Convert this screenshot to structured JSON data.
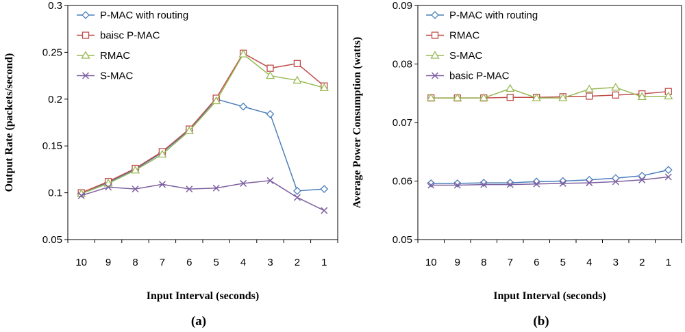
{
  "chart_data": [
    {
      "type": "line",
      "panel_label": "(a)",
      "xlabel": "Input Interval (seconds)",
      "ylabel": "Output Rate (packets/second)",
      "categories": [
        "10",
        "9",
        "8",
        "7",
        "6",
        "5",
        "4",
        "3",
        "2",
        "1"
      ],
      "ylim": [
        0.05,
        0.3
      ],
      "yticks": [
        "0.05",
        "0.1",
        "0.15",
        "0.2",
        "0.25",
        "0.3"
      ],
      "ytick_values": [
        0.05,
        0.1,
        0.15,
        0.2,
        0.25,
        0.3
      ],
      "legend_position": "top-left",
      "grid": false,
      "series": [
        {
          "name": "P-MAC with routing",
          "marker": "diamond",
          "color": "#4a7ebb",
          "values": [
            0.099,
            0.111,
            0.125,
            0.143,
            0.167,
            0.2,
            0.192,
            0.184,
            0.102,
            0.104
          ]
        },
        {
          "name": "baisc P-MAC",
          "marker": "square",
          "color": "#be4b48",
          "values": [
            0.1,
            0.112,
            0.126,
            0.144,
            0.168,
            0.201,
            0.249,
            0.233,
            0.238,
            0.214
          ]
        },
        {
          "name": "RMAC",
          "marker": "triangle",
          "color": "#98b954",
          "values": [
            0.099,
            0.11,
            0.124,
            0.141,
            0.166,
            0.198,
            0.248,
            0.225,
            0.22,
            0.212
          ]
        },
        {
          "name": "S-MAC",
          "marker": "x",
          "color": "#7d60a0",
          "values": [
            0.097,
            0.106,
            0.104,
            0.109,
            0.104,
            0.105,
            0.11,
            0.113,
            0.095,
            0.081
          ]
        }
      ]
    },
    {
      "type": "line",
      "panel_label": "(b)",
      "xlabel": "Input Interval (seconds)",
      "ylabel": "Average Power Consumption (watts)",
      "categories": [
        "10",
        "9",
        "8",
        "7",
        "6",
        "5",
        "4",
        "3",
        "2",
        "1"
      ],
      "ylim": [
        0.05,
        0.09
      ],
      "yticks": [
        "0.05",
        "0.06",
        "0.07",
        "0.08",
        "0.09"
      ],
      "ytick_values": [
        0.05,
        0.06,
        0.07,
        0.08,
        0.09
      ],
      "legend_position": "top-left",
      "grid": false,
      "series": [
        {
          "name": "P-MAC with routing",
          "marker": "diamond",
          "color": "#4a7ebb",
          "values": [
            0.0596,
            0.0596,
            0.0597,
            0.0597,
            0.0599,
            0.06,
            0.0602,
            0.0605,
            0.0609,
            0.0619
          ]
        },
        {
          "name": "RMAC",
          "marker": "square",
          "color": "#be4b48",
          "values": [
            0.0742,
            0.0742,
            0.0742,
            0.0743,
            0.0743,
            0.0744,
            0.0745,
            0.0747,
            0.0749,
            0.0753
          ]
        },
        {
          "name": "S-MAC",
          "marker": "triangle",
          "color": "#98b954",
          "values": [
            0.0742,
            0.0742,
            0.0742,
            0.0758,
            0.0742,
            0.0742,
            0.0757,
            0.076,
            0.0744,
            0.0745
          ]
        },
        {
          "name": "basic P-MAC",
          "marker": "x",
          "color": "#7d60a0",
          "values": [
            0.0593,
            0.0593,
            0.0594,
            0.0594,
            0.0595,
            0.0596,
            0.0597,
            0.0599,
            0.0602,
            0.0607
          ]
        }
      ]
    }
  ]
}
